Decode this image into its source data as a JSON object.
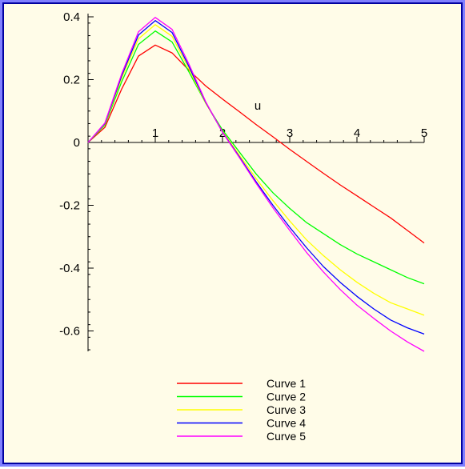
{
  "chart_data": {
    "type": "line",
    "title": "",
    "xlabel": "u",
    "ylabel": "",
    "xlim": [
      0,
      5
    ],
    "ylim": [
      -0.7,
      0.42
    ],
    "x_ticks": [
      1,
      2,
      3,
      4,
      5
    ],
    "x_tick_labels": [
      "1",
      "2",
      "3",
      "4",
      "5"
    ],
    "y_ticks": [
      0.4,
      0.2,
      0,
      -0.2,
      -0.4,
      -0.6
    ],
    "y_tick_labels": [
      "0.4",
      "0.2",
      "0",
      "-0.2",
      "-0.4",
      "-0.6"
    ],
    "grid": false,
    "legend_position": "bottom",
    "x": [
      0,
      0.25,
      0.5,
      0.75,
      1,
      1.25,
      1.5,
      1.75,
      2,
      2.25,
      2.5,
      2.75,
      3,
      3.25,
      3.5,
      3.75,
      4,
      4.25,
      4.5,
      4.75,
      5
    ],
    "series": [
      {
        "name": "Curve 1",
        "color": "#ff0000",
        "values": [
          0,
          0.048,
          0.17,
          0.275,
          0.31,
          0.285,
          0.23,
          0.18,
          0.138,
          0.098,
          0.057,
          0.018,
          -0.022,
          -0.06,
          -0.098,
          -0.135,
          -0.17,
          -0.205,
          -0.24,
          -0.28,
          -0.32
        ]
      },
      {
        "name": "Curve 2",
        "color": "#00ff00",
        "values": [
          0,
          0.055,
          0.193,
          0.312,
          0.355,
          0.32,
          0.225,
          0.125,
          0.04,
          -0.03,
          -0.1,
          -0.16,
          -0.21,
          -0.255,
          -0.29,
          -0.325,
          -0.355,
          -0.38,
          -0.405,
          -0.43,
          -0.45
        ]
      },
      {
        "name": "Curve 3",
        "color": "#ffff00",
        "values": [
          0,
          0.058,
          0.205,
          0.33,
          0.375,
          0.338,
          0.235,
          0.125,
          0.035,
          -0.04,
          -0.115,
          -0.185,
          -0.25,
          -0.31,
          -0.36,
          -0.405,
          -0.445,
          -0.48,
          -0.51,
          -0.53,
          -0.55
        ]
      },
      {
        "name": "Curve 4",
        "color": "#0000ff",
        "values": [
          0,
          0.06,
          0.212,
          0.342,
          0.388,
          0.35,
          0.242,
          0.128,
          0.033,
          -0.045,
          -0.125,
          -0.2,
          -0.27,
          -0.335,
          -0.395,
          -0.445,
          -0.49,
          -0.53,
          -0.565,
          -0.59,
          -0.61
        ]
      },
      {
        "name": "Curve 5",
        "color": "#ff00ff",
        "values": [
          0,
          0.062,
          0.218,
          0.352,
          0.398,
          0.36,
          0.25,
          0.13,
          0.032,
          -0.048,
          -0.13,
          -0.208,
          -0.28,
          -0.35,
          -0.412,
          -0.468,
          -0.518,
          -0.56,
          -0.6,
          -0.635,
          -0.665
        ]
      }
    ]
  }
}
